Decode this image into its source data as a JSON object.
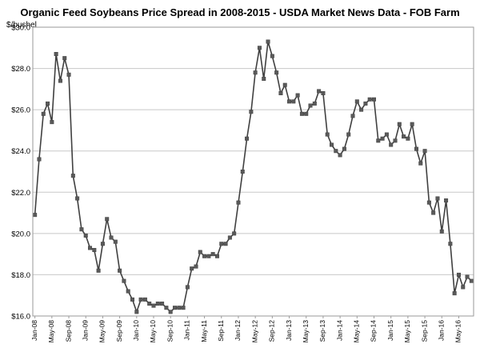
{
  "chart_data": {
    "type": "line",
    "title": "Organic Feed Soybeans Price Spread in 2008-2015 - USDA Market News Data - FOB Farm",
    "ylabel": "$/bushel",
    "xlabel": "",
    "ylim": [
      16.0,
      30.0
    ],
    "yticks": [
      "$16.0",
      "$18.0",
      "$20.0",
      "$22.0",
      "$24.0",
      "$26.0",
      "$28.0",
      "$30.0"
    ],
    "xtick_labels": [
      "Jan-08",
      "May-08",
      "Sep-08",
      "Jan-09",
      "May-09",
      "Sep-09",
      "Jan-10",
      "May-10",
      "Sep-10",
      "Jan-11",
      "May-11",
      "Sep-11",
      "Jan-12",
      "May-12",
      "Sep-12",
      "Jan-13",
      "May-13",
      "Sep-13",
      "Jan-14",
      "May-14",
      "Sep-14",
      "Jan-15",
      "May-15",
      "Sep-15",
      "Jan-16",
      "May-16"
    ],
    "grid": true,
    "legend": "none",
    "series": [
      {
        "color": "#404040",
        "marker": "square",
        "x": [
          "Jan-08",
          "Feb-08",
          "Mar-08",
          "Apr-08",
          "May-08",
          "Jun-08",
          "Jul-08",
          "Aug-08",
          "Sep-08",
          "Oct-08",
          "Nov-08",
          "Dec-08",
          "Jan-09",
          "Feb-09",
          "Mar-09",
          "Apr-09",
          "May-09",
          "Jun-09",
          "Jul-09",
          "Aug-09",
          "Sep-09",
          "Oct-09",
          "Nov-09",
          "Dec-09",
          "Jan-10",
          "Feb-10",
          "Mar-10",
          "Apr-10",
          "May-10",
          "Jun-10",
          "Jul-10",
          "Aug-10",
          "Sep-10",
          "Oct-10",
          "Nov-10",
          "Dec-10",
          "Jan-11",
          "Feb-11",
          "Mar-11",
          "Apr-11",
          "May-11",
          "Jun-11",
          "Jul-11",
          "Aug-11",
          "Sep-11",
          "Oct-11",
          "Nov-11",
          "Dec-11",
          "Jan-12",
          "Feb-12",
          "Mar-12",
          "Apr-12",
          "May-12",
          "Jun-12",
          "Jul-12",
          "Aug-12",
          "Sep-12",
          "Oct-12",
          "Nov-12",
          "Dec-12",
          "Jan-13",
          "Feb-13",
          "Mar-13",
          "Apr-13",
          "May-13",
          "Jun-13",
          "Jul-13",
          "Aug-13",
          "Sep-13",
          "Oct-13",
          "Nov-13",
          "Dec-13",
          "Jan-14",
          "Feb-14",
          "Mar-14",
          "Apr-14",
          "May-14",
          "Jun-14",
          "Jul-14",
          "Aug-14",
          "Sep-14",
          "Oct-14",
          "Nov-14",
          "Dec-14",
          "Jan-15",
          "Feb-15",
          "Mar-15",
          "Apr-15",
          "May-15",
          "Jun-15",
          "Jul-15",
          "Aug-15",
          "Sep-15",
          "Oct-15",
          "Nov-15",
          "Dec-15",
          "Jan-16",
          "Feb-16",
          "Mar-16",
          "Apr-16",
          "May-16",
          "Jun-16",
          "Jul-16",
          "Aug-16"
        ],
        "values": [
          20.9,
          23.6,
          25.8,
          26.3,
          25.4,
          28.7,
          27.4,
          28.5,
          27.7,
          22.8,
          21.7,
          20.2,
          19.9,
          19.3,
          19.2,
          18.2,
          19.5,
          20.7,
          19.8,
          19.6,
          18.2,
          17.7,
          17.2,
          16.8,
          16.2,
          16.8,
          16.8,
          16.6,
          16.5,
          16.6,
          16.6,
          16.4,
          16.2,
          16.4,
          16.4,
          16.4,
          17.4,
          18.3,
          18.4,
          19.1,
          18.9,
          18.9,
          19.0,
          18.9,
          19.5,
          19.5,
          19.8,
          20.0,
          21.5,
          23.0,
          24.6,
          25.9,
          27.8,
          29.0,
          27.5,
          29.3,
          28.6,
          27.8,
          26.8,
          27.2,
          26.4,
          26.4,
          26.7,
          25.8,
          25.8,
          26.2,
          26.3,
          26.9,
          26.8,
          24.8,
          24.3,
          24.0,
          23.8,
          24.1,
          24.8,
          25.7,
          26.4,
          26.0,
          26.3,
          26.5,
          26.5,
          24.5,
          24.6,
          24.8,
          24.3,
          24.5,
          25.3,
          24.7,
          24.6,
          25.3,
          24.1,
          23.4,
          24.0,
          21.5,
          21.0,
          21.7,
          20.1,
          21.6,
          19.5,
          17.1,
          18.0,
          17.4,
          17.9,
          17.7
        ]
      }
    ]
  }
}
